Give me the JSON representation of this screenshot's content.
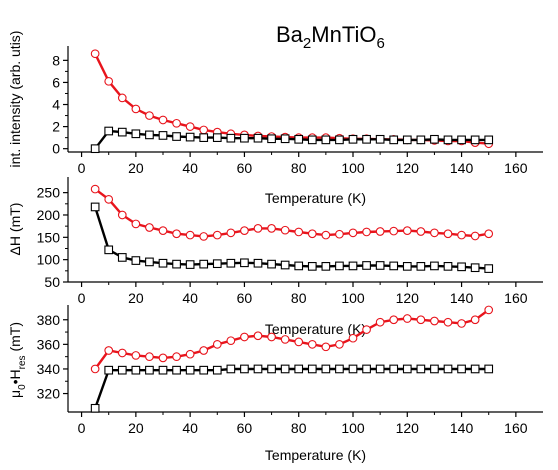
{
  "figure": {
    "title_parts": [
      "Ba",
      "2",
      "MnTiO",
      "6"
    ]
  },
  "chart_data": [
    {
      "type": "line",
      "ylabel": "int. intensity (arb. utis)",
      "xlabel": "Temperature (K)",
      "xlim": [
        -5,
        170
      ],
      "ylim": [
        -0.3,
        9.3
      ],
      "xticks": [
        0,
        20,
        40,
        60,
        80,
        100,
        120,
        140,
        160
      ],
      "yticks": [
        0,
        2,
        4,
        6,
        8
      ],
      "grid": false,
      "series": [
        {
          "color": "#e8141c",
          "marker": "circle",
          "x": [
            5,
            10,
            15,
            20,
            25,
            30,
            35,
            40,
            45,
            50,
            55,
            60,
            65,
            70,
            75,
            80,
            85,
            90,
            95,
            100,
            105,
            110,
            115,
            120,
            125,
            130,
            135,
            140,
            145,
            150
          ],
          "y": [
            8.6,
            6.1,
            4.6,
            3.6,
            3.0,
            2.6,
            2.3,
            2.0,
            1.7,
            1.5,
            1.35,
            1.25,
            1.15,
            1.1,
            1.05,
            1.0,
            1.0,
            1.0,
            0.95,
            0.9,
            0.9,
            0.85,
            0.85,
            0.8,
            0.8,
            0.75,
            0.7,
            0.7,
            0.55,
            0.45
          ]
        },
        {
          "color": "#000000",
          "marker": "square",
          "x": [
            5,
            10,
            15,
            20,
            25,
            30,
            35,
            40,
            45,
            50,
            55,
            60,
            65,
            70,
            75,
            80,
            85,
            90,
            95,
            100,
            105,
            110,
            115,
            120,
            125,
            130,
            135,
            140,
            145,
            150
          ],
          "y": [
            0.0,
            1.6,
            1.5,
            1.35,
            1.25,
            1.2,
            1.1,
            1.05,
            1.0,
            1.0,
            0.95,
            0.95,
            0.95,
            0.9,
            0.9,
            0.85,
            0.8,
            0.8,
            0.8,
            0.85,
            0.85,
            0.85,
            0.8,
            0.8,
            0.8,
            0.85,
            0.8,
            0.8,
            0.8,
            0.8
          ]
        }
      ]
    },
    {
      "type": "line",
      "ylabel": "ΔH (mT)",
      "xlabel": "Temperature (K)",
      "xlim": [
        -5,
        170
      ],
      "ylim": [
        50,
        285
      ],
      "xticks": [
        0,
        20,
        40,
        60,
        80,
        100,
        120,
        140,
        160
      ],
      "yticks": [
        50,
        100,
        150,
        200,
        250
      ],
      "grid": false,
      "series": [
        {
          "color": "#e8141c",
          "marker": "circle",
          "x": [
            5,
            10,
            15,
            20,
            25,
            30,
            35,
            40,
            45,
            50,
            55,
            60,
            65,
            70,
            75,
            80,
            85,
            90,
            95,
            100,
            105,
            110,
            115,
            120,
            125,
            130,
            135,
            140,
            145,
            150
          ],
          "y": [
            258,
            235,
            200,
            180,
            172,
            165,
            158,
            155,
            152,
            155,
            160,
            165,
            170,
            170,
            166,
            162,
            158,
            155,
            157,
            160,
            162,
            163,
            164,
            165,
            163,
            160,
            158,
            155,
            153,
            158
          ]
        },
        {
          "color": "#000000",
          "marker": "square",
          "x": [
            5,
            10,
            15,
            20,
            25,
            30,
            35,
            40,
            45,
            50,
            55,
            60,
            65,
            70,
            75,
            80,
            85,
            90,
            95,
            100,
            105,
            110,
            115,
            120,
            125,
            130,
            135,
            140,
            145,
            150
          ],
          "y": [
            218,
            122,
            105,
            98,
            95,
            92,
            90,
            89,
            90,
            91,
            92,
            93,
            92,
            90,
            88,
            86,
            85,
            85,
            86,
            86,
            87,
            87,
            86,
            85,
            85,
            86,
            85,
            84,
            82,
            80
          ]
        }
      ]
    },
    {
      "type": "line",
      "ylabel_parts": [
        "μ",
        "0",
        "•H",
        "res",
        " (mT)"
      ],
      "xlabel": "Temperature (K)",
      "xlim": [
        -5,
        170
      ],
      "ylim": [
        305,
        392
      ],
      "xticks": [
        0,
        20,
        40,
        60,
        80,
        100,
        120,
        140,
        160
      ],
      "yticks": [
        320,
        340,
        360,
        380
      ],
      "grid": false,
      "series": [
        {
          "color": "#e8141c",
          "marker": "circle",
          "x": [
            5,
            10,
            15,
            20,
            25,
            30,
            35,
            40,
            45,
            50,
            55,
            60,
            65,
            70,
            75,
            80,
            85,
            90,
            95,
            100,
            105,
            110,
            115,
            120,
            125,
            130,
            135,
            140,
            145,
            150
          ],
          "y": [
            340,
            355,
            353,
            351,
            350,
            349,
            350,
            352,
            355,
            360,
            363,
            366,
            367,
            366,
            364,
            362,
            360,
            358,
            360,
            365,
            372,
            378,
            380,
            381,
            380,
            379,
            378,
            377,
            380,
            388
          ]
        },
        {
          "color": "#000000",
          "marker": "square",
          "x": [
            5,
            10,
            15,
            20,
            25,
            30,
            35,
            40,
            45,
            50,
            55,
            60,
            65,
            70,
            75,
            80,
            85,
            90,
            95,
            100,
            105,
            110,
            115,
            120,
            125,
            130,
            135,
            140,
            145,
            150
          ],
          "y": [
            308,
            339,
            339,
            339,
            339,
            339,
            339,
            339,
            339,
            339,
            340,
            340,
            340,
            340,
            340,
            340,
            340,
            340,
            340,
            340,
            340,
            340,
            340,
            340,
            340,
            340,
            340,
            340,
            340,
            340
          ]
        }
      ]
    }
  ]
}
